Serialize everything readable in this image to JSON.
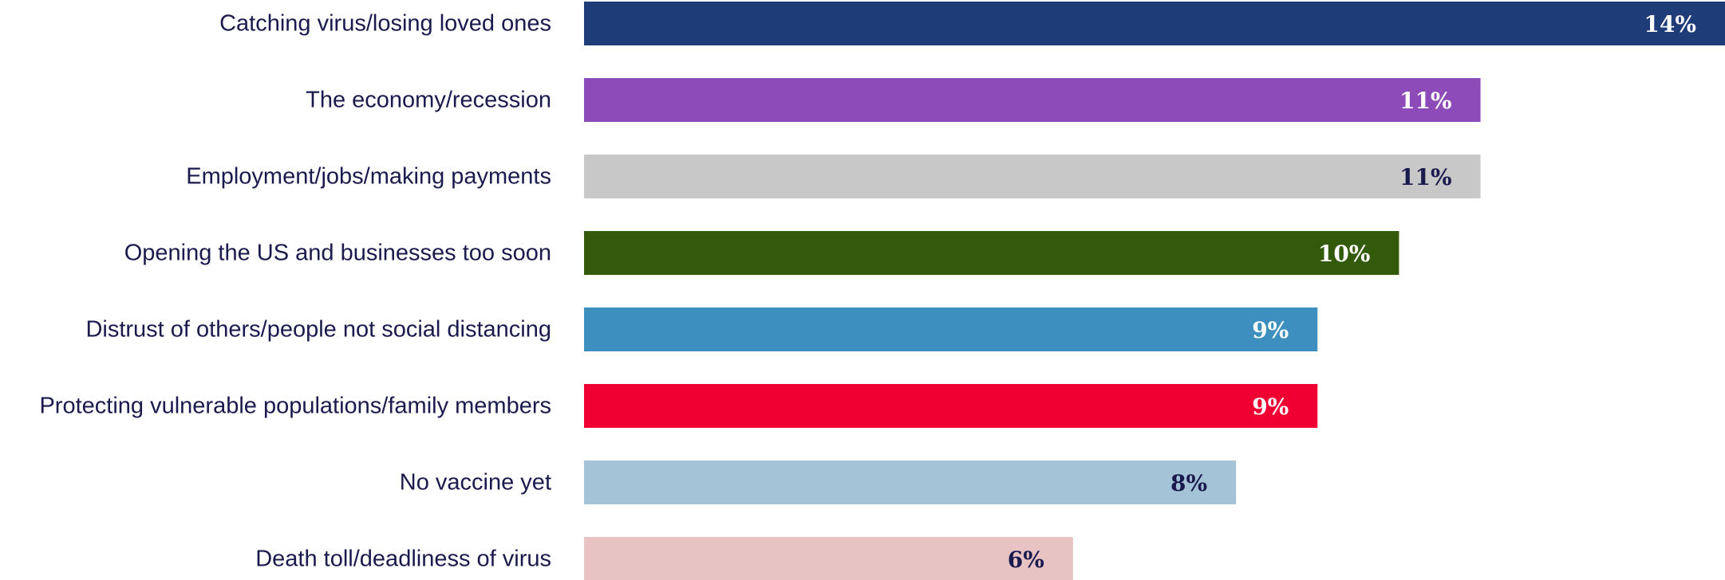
{
  "chart_data": {
    "type": "bar",
    "orientation": "horizontal",
    "categories": [
      "Catching virus/losing loved ones",
      "The economy/recession",
      "Employment/jobs/making payments",
      "Opening the US and businesses too soon",
      "Distrust of others/people not social distancing",
      "Protecting vulnerable populations/family members",
      "No vaccine yet",
      "Death toll/deadliness of virus"
    ],
    "values": [
      14,
      11,
      11,
      10,
      9,
      9,
      8,
      6
    ],
    "value_labels": [
      "14%",
      "11%",
      "11%",
      "10%",
      "9%",
      "9%",
      "8%",
      "6%"
    ],
    "unit": "%",
    "bar_colors": [
      "#1e3c78",
      "#8c4bb9",
      "#c8c8c8",
      "#325a0a",
      "#3c8fbf",
      "#f00032",
      "#a5c3d7",
      "#e8c3c3"
    ],
    "label_colors": [
      "#ffffff",
      "#ffffff",
      "#1a1a4e",
      "#ffffff",
      "#ffffff",
      "#ffffff",
      "#1a1a4e",
      "#1a1a4e"
    ],
    "title": "",
    "xlabel": "",
    "ylabel": "",
    "grid": false,
    "legend": "none"
  }
}
